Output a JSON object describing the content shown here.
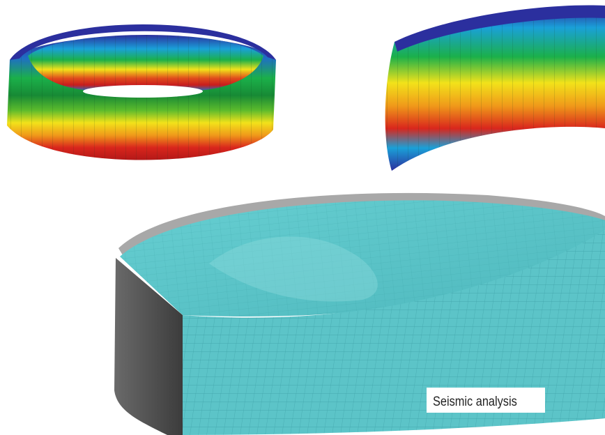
{
  "caption": "Seismic analysis",
  "figures": [
    {
      "name": "full-tank-ring-stress-contour"
    },
    {
      "name": "tank-shell-segment-stress-contour"
    },
    {
      "name": "liquid-sloshing-mesh-cutaway"
    }
  ],
  "colors": {
    "contour_low": "#2b2f9e",
    "contour_mid_low": "#1aa0d8",
    "contour_mid": "#1bb04a",
    "contour_mid_high": "#f2e21a",
    "contour_high": "#d9261c",
    "liquid": "#5cc4c8",
    "mesh_line": "#2e8f96",
    "tank_wall": "#555555",
    "tank_rim": "#a8a8a8"
  }
}
